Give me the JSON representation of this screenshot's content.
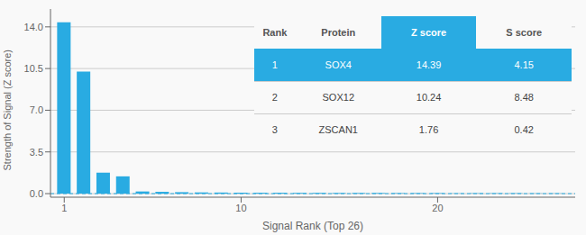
{
  "chart_data": {
    "type": "bar",
    "x": [
      1,
      2,
      3,
      4,
      5,
      6,
      7,
      8,
      9,
      10,
      11,
      12,
      13,
      14,
      15,
      16,
      17,
      18,
      19,
      20,
      21,
      22,
      23,
      24,
      25,
      26
    ],
    "values": [
      14.39,
      10.24,
      1.76,
      1.45,
      0.18,
      0.15,
      0.12,
      0.1,
      0.09,
      0.08,
      0.07,
      0.07,
      0.06,
      0.06,
      0.05,
      0.05,
      0.05,
      0.04,
      0.04,
      0.04,
      0.03,
      0.03,
      0.03,
      0.03,
      0.02,
      0.02
    ],
    "color": "#29ABE2",
    "xlabel": "Signal Rank (Top 26)",
    "ylabel": "Strength of Signal (Z score)",
    "xlim": [
      0.3,
      27
    ],
    "xticks": [
      1,
      10,
      20
    ],
    "ylim": [
      -0.3,
      15.5
    ],
    "yticks": [
      {
        "value": 0.0,
        "label": "0.0"
      },
      3.5,
      {
        "value": 7.0,
        "label": "7.0"
      },
      10.5,
      {
        "value": 14.0,
        "label": "14.0"
      }
    ],
    "grid": true,
    "hline": 0.0,
    "line_style": "dashed",
    "table": {
      "headers": [
        "Rank",
        "Protein",
        "Z score",
        "S score"
      ],
      "rows": [
        [
          "1",
          "SOX4",
          "14.39",
          "4.15"
        ],
        [
          "2",
          "SOX12",
          "10.24",
          "8.48"
        ],
        [
          "3",
          "ZSCAN1",
          "1.76",
          "0.42"
        ]
      ]
    }
  }
}
